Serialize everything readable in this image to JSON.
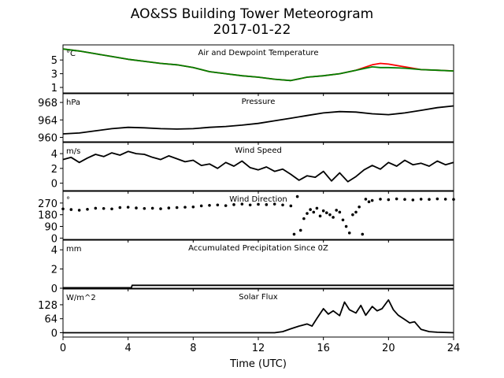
{
  "figure": {
    "title_line1": "AO&SS Building Tower Meteorogram",
    "title_line2": "2017-01-22",
    "xlabel": "Time (UTC)",
    "xticks": [
      0,
      4,
      8,
      12,
      16,
      20,
      24
    ],
    "xlim": [
      0,
      24
    ]
  },
  "chart_data": [
    {
      "type": "line",
      "title": "Air and Dewpoint Temperature",
      "unit": "°C",
      "ylim": [
        0.2,
        7.2
      ],
      "yticks": [
        1,
        3,
        5
      ],
      "series": [
        {
          "color": "#ff0000",
          "x": [
            0,
            1,
            2,
            3,
            4,
            5,
            6,
            7,
            8,
            9,
            10,
            11,
            12,
            13,
            14,
            15,
            16,
            17,
            18,
            19,
            19.5,
            20,
            21,
            22,
            23,
            24
          ],
          "y": [
            6.6,
            6.3,
            5.9,
            5.5,
            5.1,
            4.8,
            4.5,
            4.3,
            3.9,
            3.3,
            3.0,
            2.7,
            2.5,
            2.2,
            2.0,
            2.5,
            2.7,
            3.0,
            3.5,
            4.3,
            4.5,
            4.4,
            4.0,
            3.6,
            3.5,
            3.4
          ]
        },
        {
          "color": "#008000",
          "x": [
            0,
            1,
            2,
            3,
            4,
            5,
            6,
            7,
            8,
            9,
            10,
            11,
            12,
            13,
            14,
            15,
            16,
            17,
            18,
            19,
            19.5,
            20,
            21,
            22,
            23,
            24
          ],
          "y": [
            6.6,
            6.3,
            5.9,
            5.5,
            5.1,
            4.8,
            4.5,
            4.3,
            3.9,
            3.3,
            3.0,
            2.7,
            2.5,
            2.2,
            2.0,
            2.5,
            2.7,
            3.0,
            3.5,
            4.0,
            3.9,
            3.9,
            3.8,
            3.6,
            3.5,
            3.4
          ]
        }
      ]
    },
    {
      "type": "line",
      "title": "Pressure",
      "unit": "hPa",
      "ylim": [
        959,
        970
      ],
      "yticks": [
        960,
        964,
        968
      ],
      "series": [
        {
          "color": "#000000",
          "x": [
            0,
            1,
            2,
            3,
            4,
            5,
            6,
            7,
            8,
            9,
            10,
            11,
            12,
            13,
            14,
            15,
            16,
            17,
            18,
            19,
            20,
            21,
            22,
            23,
            24
          ],
          "y": [
            960.8,
            961.0,
            961.5,
            962.0,
            962.3,
            962.2,
            962.0,
            961.9,
            962.0,
            962.3,
            962.5,
            962.8,
            963.2,
            963.8,
            964.4,
            965.0,
            965.6,
            965.9,
            965.8,
            965.4,
            965.2,
            965.6,
            966.2,
            966.8,
            967.2
          ]
        }
      ]
    },
    {
      "type": "line",
      "title": "Wind Speed",
      "unit": "m/s",
      "ylim": [
        -1,
        5.5
      ],
      "yticks": [
        0,
        2,
        4
      ],
      "series": [
        {
          "color": "#000000",
          "x": [
            0,
            0.5,
            1,
            1.5,
            2,
            2.5,
            3,
            3.5,
            4,
            4.5,
            5,
            5.5,
            6,
            6.5,
            7,
            7.5,
            8,
            8.5,
            9,
            9.5,
            10,
            10.5,
            11,
            11.5,
            12,
            12.5,
            13,
            13.5,
            14,
            14.5,
            15,
            15.5,
            16,
            16.5,
            17,
            17.5,
            18,
            18.5,
            19,
            19.5,
            20,
            20.5,
            21,
            21.5,
            22,
            22.5,
            23,
            23.5,
            24
          ],
          "y": [
            3.2,
            3.5,
            2.8,
            3.4,
            3.9,
            3.6,
            4.1,
            3.8,
            4.3,
            4.0,
            3.9,
            3.5,
            3.2,
            3.7,
            3.3,
            2.9,
            3.1,
            2.4,
            2.6,
            2.0,
            2.8,
            2.3,
            3.0,
            2.1,
            1.8,
            2.2,
            1.6,
            1.9,
            1.2,
            0.4,
            1.0,
            0.8,
            1.6,
            0.3,
            1.4,
            0.2,
            0.9,
            1.8,
            2.4,
            1.9,
            2.8,
            2.3,
            3.1,
            2.5,
            2.7,
            2.3,
            3.0,
            2.5,
            2.8
          ]
        }
      ]
    },
    {
      "type": "scatter",
      "title": "Wind Direction",
      "unit": "°",
      "ylim": [
        -10,
        360
      ],
      "yticks": [
        0,
        90,
        180,
        270
      ],
      "series": [
        {
          "color": "#000000",
          "x": [
            0,
            0.5,
            1,
            1.5,
            2,
            2.5,
            3,
            3.5,
            4,
            4.5,
            5,
            5.5,
            6,
            6.5,
            7,
            7.5,
            8,
            8.5,
            9,
            9.5,
            10,
            10.5,
            11,
            11.5,
            12,
            12.5,
            13,
            13.5,
            14,
            14.2,
            14.4,
            14.6,
            14.8,
            15,
            15.2,
            15.4,
            15.6,
            15.8,
            16,
            16.2,
            16.4,
            16.6,
            16.8,
            17,
            17.2,
            17.4,
            17.6,
            17.8,
            18,
            18.2,
            18.4,
            18.6,
            18.8,
            19,
            19.5,
            20,
            20.5,
            21,
            21.5,
            22,
            22.5,
            23,
            23.5,
            24
          ],
          "y": [
            225,
            220,
            215,
            222,
            230,
            228,
            225,
            235,
            238,
            232,
            228,
            230,
            226,
            232,
            235,
            238,
            240,
            248,
            252,
            255,
            250,
            258,
            262,
            255,
            260,
            258,
            262,
            255,
            248,
            30,
            320,
            60,
            150,
            190,
            220,
            200,
            230,
            170,
            210,
            195,
            180,
            160,
            215,
            200,
            140,
            90,
            40,
            180,
            200,
            240,
            30,
            300,
            280,
            290,
            300,
            296,
            302,
            298,
            294,
            300,
            298,
            302,
            300,
            298
          ]
        }
      ]
    },
    {
      "type": "line",
      "title": "Accumulated Precipitation Since 0Z",
      "unit": "mm",
      "ylim": [
        0,
        5
      ],
      "yticks": [
        0,
        2,
        4
      ],
      "series": [
        {
          "color": "#000000",
          "x": [
            0,
            4.2,
            4.25,
            24
          ],
          "y": [
            0.05,
            0.05,
            0.3,
            0.3
          ]
        }
      ]
    },
    {
      "type": "line",
      "title": "Solar Flux",
      "unit": "W/m^2",
      "ylim": [
        -20,
        200
      ],
      "yticks": [
        0,
        64,
        128
      ],
      "series": [
        {
          "color": "#000000",
          "x": [
            0,
            13,
            13.5,
            14,
            14.5,
            15,
            15.3,
            15.6,
            16,
            16.3,
            16.6,
            17,
            17.3,
            17.6,
            18,
            18.3,
            18.6,
            19,
            19.3,
            19.6,
            20,
            20.3,
            20.6,
            21,
            21.3,
            21.6,
            22,
            22.5,
            23,
            24
          ],
          "y": [
            0,
            0,
            5,
            18,
            30,
            40,
            30,
            65,
            110,
            85,
            100,
            78,
            140,
            105,
            90,
            125,
            80,
            120,
            100,
            110,
            150,
            105,
            80,
            60,
            45,
            50,
            15,
            5,
            2,
            0
          ]
        }
      ]
    }
  ]
}
